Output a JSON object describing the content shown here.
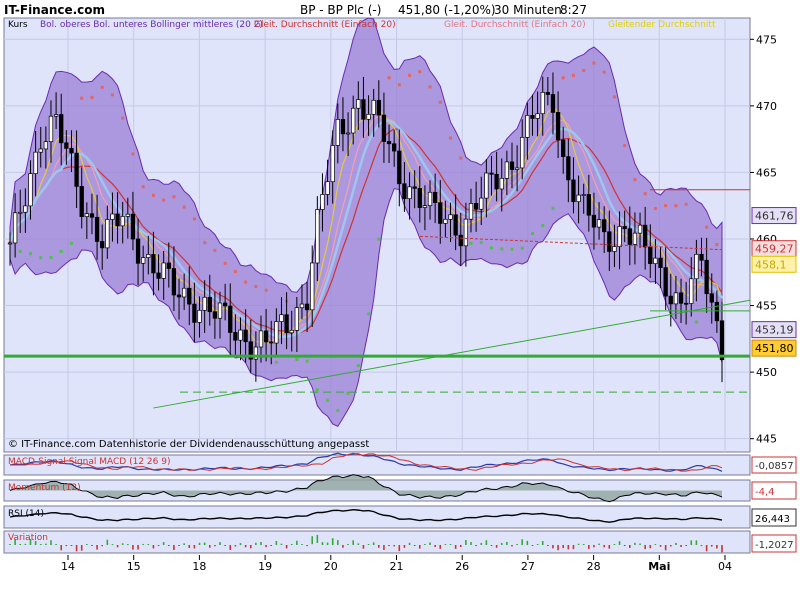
{
  "header": {
    "site": "IT-Finance.com",
    "instrument": "BP - BP Plc (-)",
    "quote": "451,80 (-1,20%)",
    "interval": "30 Minuten",
    "time": "8:27"
  },
  "legend": {
    "kurs": "Kurs",
    "bollinger": "Bol. oberes Bol. unteres Bollinger mittleres (20 2)",
    "gd1": "Gleit. Durchschnitt (Einfach 20)",
    "gd2": "Gleit. Durchschnitt (Einfach 20)",
    "gd3": "Gleitender Durchschnitt"
  },
  "footnote": "© IT-Finance.com Datenhistorie der Dividendenausschüttung angepasst",
  "colors": {
    "panel_bg": "#dfe4fa",
    "bollinger_fill": "#9a7fd6",
    "bollinger_line": "#6a2ab3",
    "candle": "#000000",
    "support": "#33aa33",
    "resistance": "#cc3333",
    "sar_up": "#55bb55",
    "sar_down": "#e06666"
  },
  "chart_data": [
    {
      "type": "candlestick",
      "title": "BP - BP Plc (-)",
      "price_axis": {
        "ticks": [
          445,
          450,
          455,
          460,
          465,
          470,
          475
        ],
        "ylim": [
          444,
          476.6
        ]
      },
      "dates": [
        "14",
        "15",
        "18",
        "19",
        "20",
        "21",
        "26",
        "27",
        "28",
        "Mai",
        "04"
      ],
      "markers": [
        {
          "label": "461,76",
          "value": 461.76,
          "bg": "#e6e0f7",
          "fg": "#333333",
          "border": "#6a2ab3"
        },
        {
          "label": "459,27",
          "value": 459.27,
          "bg": "#f6dede",
          "fg": "#cc3333",
          "border": "#cc3333"
        },
        {
          "label": "458,1",
          "value": 458.1,
          "bg": "#fff2a8",
          "fg": "#c8a800",
          "border": "#e0c000"
        },
        {
          "label": "453,19",
          "value": 453.19,
          "bg": "#e6e0f7",
          "fg": "#333333",
          "border": "#6a2ab3"
        },
        {
          "label": "451,80",
          "value": 451.8,
          "bg": "#ffcc33",
          "fg": "#000000",
          "border": "#cc8800"
        }
      ],
      "lines": [
        {
          "kind": "support",
          "y": 451.2
        },
        {
          "kind": "dashed",
          "y": 448.5
        },
        {
          "kind": "resistance",
          "y": 463.7
        },
        {
          "kind": "trend",
          "from": [
            0.2,
            447.3
          ],
          "to": [
            1.0,
            455.4
          ]
        }
      ]
    },
    {
      "type": "line",
      "title": "MACD-Signal Signal MACD (12 26 9)",
      "value": "-0,0857"
    },
    {
      "type": "area",
      "title": "Momentum (12)",
      "value": "-4,4"
    },
    {
      "type": "line",
      "title": "RSI (14)",
      "value": "26,443"
    },
    {
      "type": "bar",
      "title": "Variation",
      "value": "-1,2027"
    }
  ]
}
